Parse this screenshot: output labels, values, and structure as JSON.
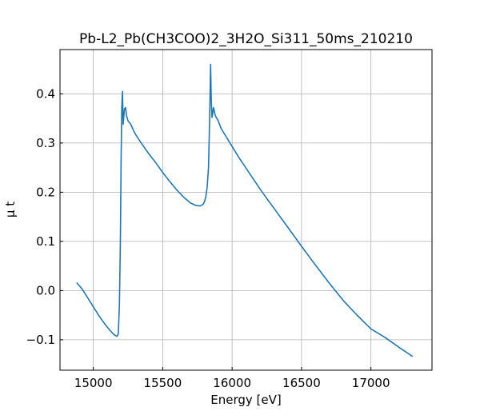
{
  "chart_data": {
    "type": "line",
    "title": "Pb-L2_Pb(CH3COO)2_3H2O_Si311_50ms_210210",
    "xlabel": "Energy [eV]",
    "ylabel": "μ t",
    "xlim": [
      14760,
      17440
    ],
    "ylim": [
      -0.162,
      0.49
    ],
    "xticks": [
      15000,
      15500,
      16000,
      16500,
      17000
    ],
    "xtick_labels": [
      "15000",
      "15500",
      "16000",
      "16500",
      "17000"
    ],
    "yticks": [
      -0.1,
      0.0,
      0.1,
      0.2,
      0.3,
      0.4
    ],
    "ytick_labels": [
      "−0.1",
      "0.0",
      "0.1",
      "0.2",
      "0.3",
      "0.4"
    ],
    "grid": true,
    "legend": "none",
    "series_color": "#1f77b4",
    "series": [
      {
        "x": [
          14880,
          14920,
          14960,
          15000,
          15040,
          15080,
          15120,
          15150,
          15170,
          15180,
          15188,
          15195,
          15200,
          15205,
          15210,
          15215,
          15220,
          15225,
          15232,
          15240,
          15250,
          15270,
          15290,
          15310,
          15350,
          15400,
          15450,
          15500,
          15550,
          15600,
          15650,
          15700,
          15740,
          15770,
          15790,
          15800,
          15810,
          15820,
          15830,
          15838,
          15845,
          15850,
          15855,
          15860,
          15865,
          15870,
          15875,
          15880,
          15890,
          15900,
          15920,
          15950,
          16000,
          16050,
          16100,
          16150,
          16200,
          16250,
          16300,
          16400,
          16500,
          16600,
          16700,
          16800,
          16900,
          17000,
          17100,
          17200,
          17300
        ],
        "y": [
          0.016,
          0.003,
          -0.015,
          -0.033,
          -0.051,
          -0.067,
          -0.081,
          -0.09,
          -0.093,
          -0.088,
          -0.03,
          0.1,
          0.26,
          0.37,
          0.405,
          0.338,
          0.355,
          0.37,
          0.372,
          0.355,
          0.345,
          0.338,
          0.325,
          0.315,
          0.298,
          0.278,
          0.26,
          0.24,
          0.222,
          0.205,
          0.19,
          0.178,
          0.173,
          0.172,
          0.175,
          0.18,
          0.19,
          0.21,
          0.25,
          0.35,
          0.46,
          0.385,
          0.352,
          0.36,
          0.372,
          0.368,
          0.36,
          0.355,
          0.35,
          0.345,
          0.33,
          0.316,
          0.293,
          0.27,
          0.249,
          0.228,
          0.207,
          0.187,
          0.168,
          0.129,
          0.09,
          0.052,
          0.015,
          -0.02,
          -0.05,
          -0.078,
          -0.095,
          -0.115,
          -0.134
        ]
      }
    ]
  }
}
